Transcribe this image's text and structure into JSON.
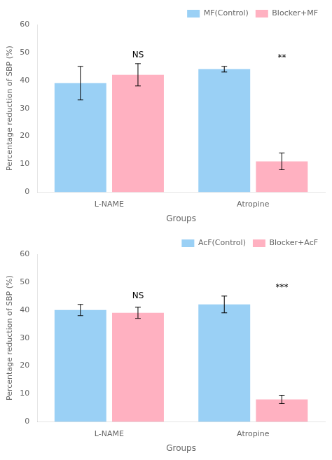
{
  "chart_data": [
    {
      "type": "bar",
      "categories": [
        "L-NAME",
        "Atropine"
      ],
      "series": [
        {
          "name": "MF(Control)",
          "values": [
            39,
            44
          ],
          "errors": [
            6,
            1
          ]
        },
        {
          "name": "Blocker+MF",
          "values": [
            42,
            11
          ],
          "errors": [
            4,
            3
          ]
        }
      ],
      "annotations": [
        {
          "text": "NS",
          "category": "L-NAME",
          "series": "Blocker+MF"
        },
        {
          "text": "**",
          "category": "Atropine",
          "series": "Blocker+MF"
        }
      ],
      "x_label": "Groups",
      "y_label": "Percentage reduction of SBP (%)",
      "ylim": [
        0,
        60
      ],
      "yticks": [
        0,
        10,
        20,
        30,
        40,
        50,
        60
      ],
      "grid": false,
      "legend": "upper right"
    },
    {
      "type": "bar",
      "categories": [
        "L-NAME",
        "Atropine"
      ],
      "series": [
        {
          "name": "AcF(Control)",
          "values": [
            40,
            42
          ],
          "errors": [
            2,
            3
          ]
        },
        {
          "name": "Blocker+AcF",
          "values": [
            39,
            8
          ],
          "errors": [
            2,
            1.5
          ]
        }
      ],
      "annotations": [
        {
          "text": "NS",
          "category": "L-NAME",
          "series": "Blocker+AcF"
        },
        {
          "text": "***",
          "category": "Atropine",
          "series": "Blocker+AcF"
        }
      ],
      "x_label": "Groups",
      "y_label": "Percentage reduction of SBP (%)",
      "ylim": [
        0,
        60
      ],
      "yticks": [
        0,
        10,
        20,
        30,
        40,
        50,
        60
      ],
      "grid": false,
      "legend": "upper right"
    }
  ]
}
